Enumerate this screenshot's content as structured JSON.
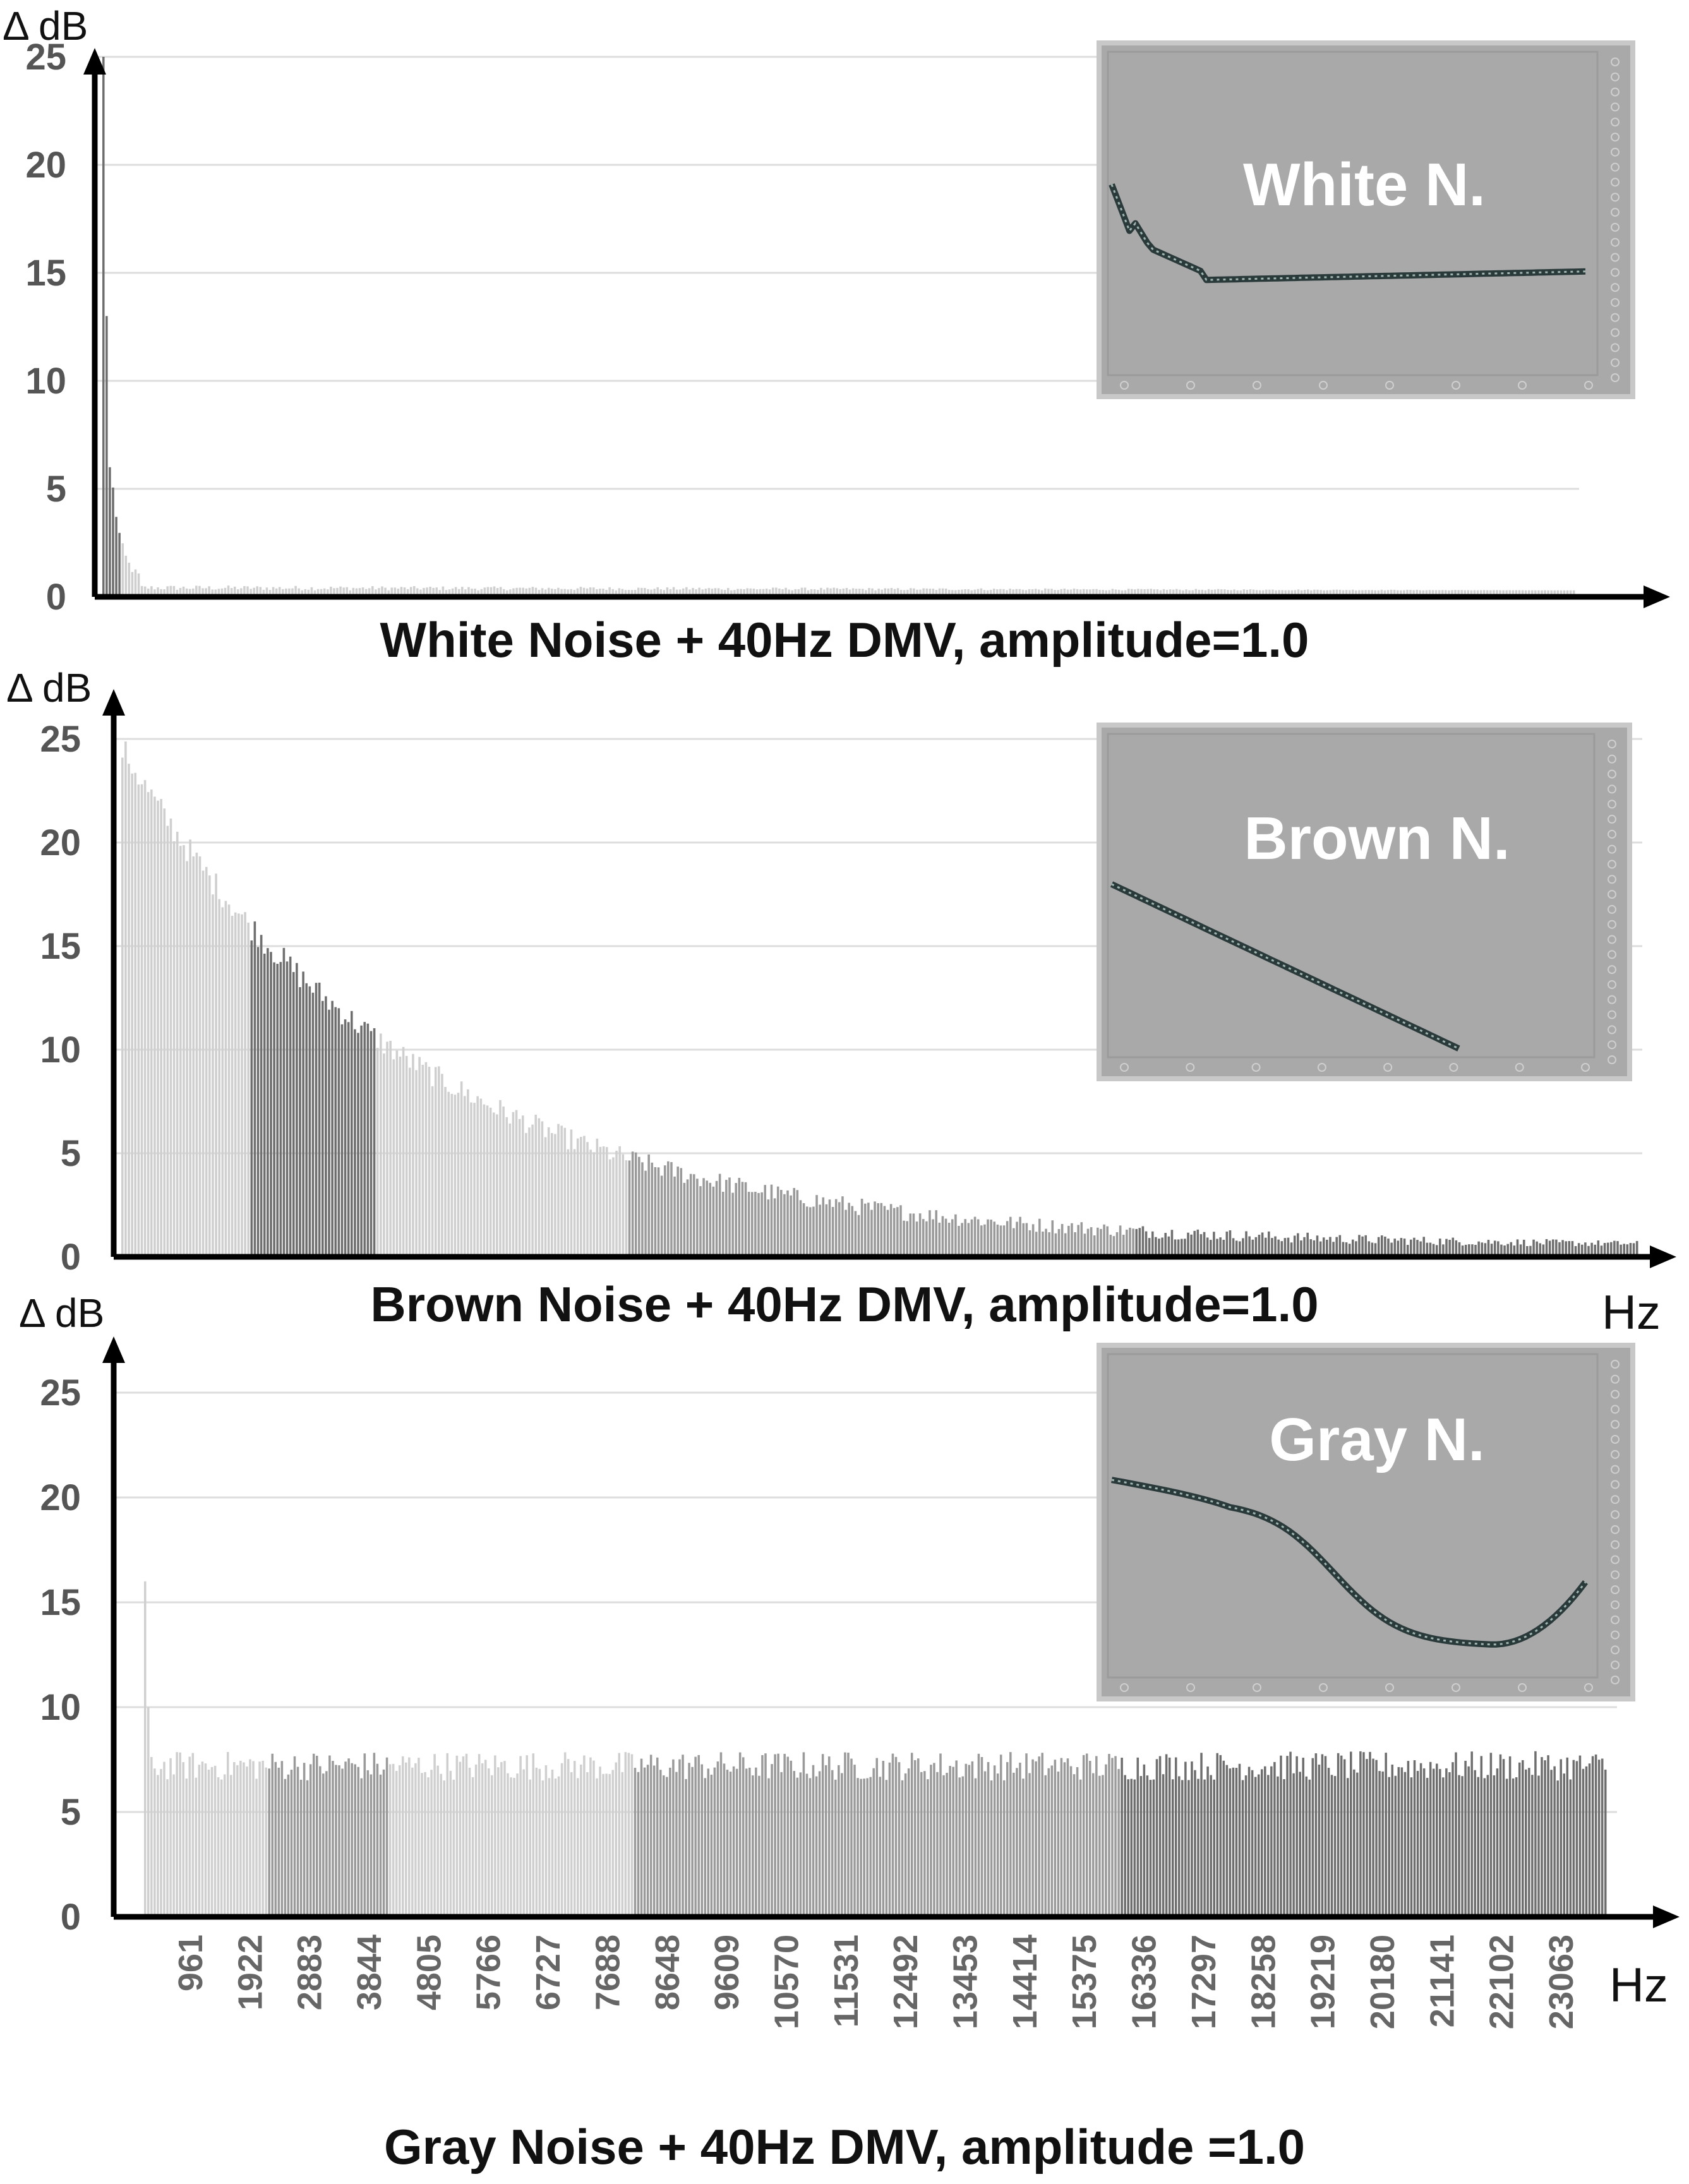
{
  "chart_data": [
    {
      "type": "bar",
      "title": "White Noise + 40Hz DMV, amplitude=1.0",
      "ylabel": "Δ dB",
      "xlabel": "",
      "ylim": [
        0,
        25
      ],
      "yticks": [
        0,
        5,
        10,
        15,
        20,
        25
      ],
      "grid": true,
      "inset_label": "White N.",
      "profile": "white",
      "bar_count": 460,
      "values_summary": {
        "first_bin": 25,
        "second_bin": 13,
        "third_bin": 6,
        "tail": 0.3
      }
    },
    {
      "type": "bar",
      "title": "Brown Noise + 40Hz DMV, amplitude=1.0",
      "ylabel": "Δ dB",
      "xlabel": "Hz",
      "ylim": [
        0,
        25
      ],
      "yticks": [
        0,
        5,
        10,
        15,
        20,
        25
      ],
      "grid": true,
      "inset_label": "Brown N.",
      "profile": "brown",
      "bar_count": 470,
      "values_summary": {
        "start": 24.5,
        "mid": 4,
        "end": 0.6
      }
    },
    {
      "type": "bar",
      "title": "Gray Noise + 40Hz DMV, amplitude =1.0",
      "ylabel": "Δ dB",
      "xlabel": "Hz",
      "ylim": [
        0,
        25
      ],
      "yticks": [
        0,
        5,
        10,
        15,
        20,
        25
      ],
      "grid": true,
      "inset_label": "Gray N.",
      "profile": "gray",
      "bar_count": 460,
      "categories": [
        "961",
        "1922",
        "2883",
        "3844",
        "4805",
        "5766",
        "6727",
        "7688",
        "8648",
        "9609",
        "10570",
        "11531",
        "12492",
        "13453",
        "14414",
        "15375",
        "16336",
        "17297",
        "18258",
        "19219",
        "20180",
        "21141",
        "22102",
        "23063"
      ],
      "values_summary": {
        "first_bin": 16,
        "second_bin": 10,
        "baseline": 7.2
      }
    }
  ],
  "colors": {
    "bar_light": "#cfcfcf",
    "bar_mid": "#9a9a9a",
    "bar_dark": "#6e6e6e",
    "inset_bg": "#a9a9a9",
    "grid": "#dddddd"
  }
}
